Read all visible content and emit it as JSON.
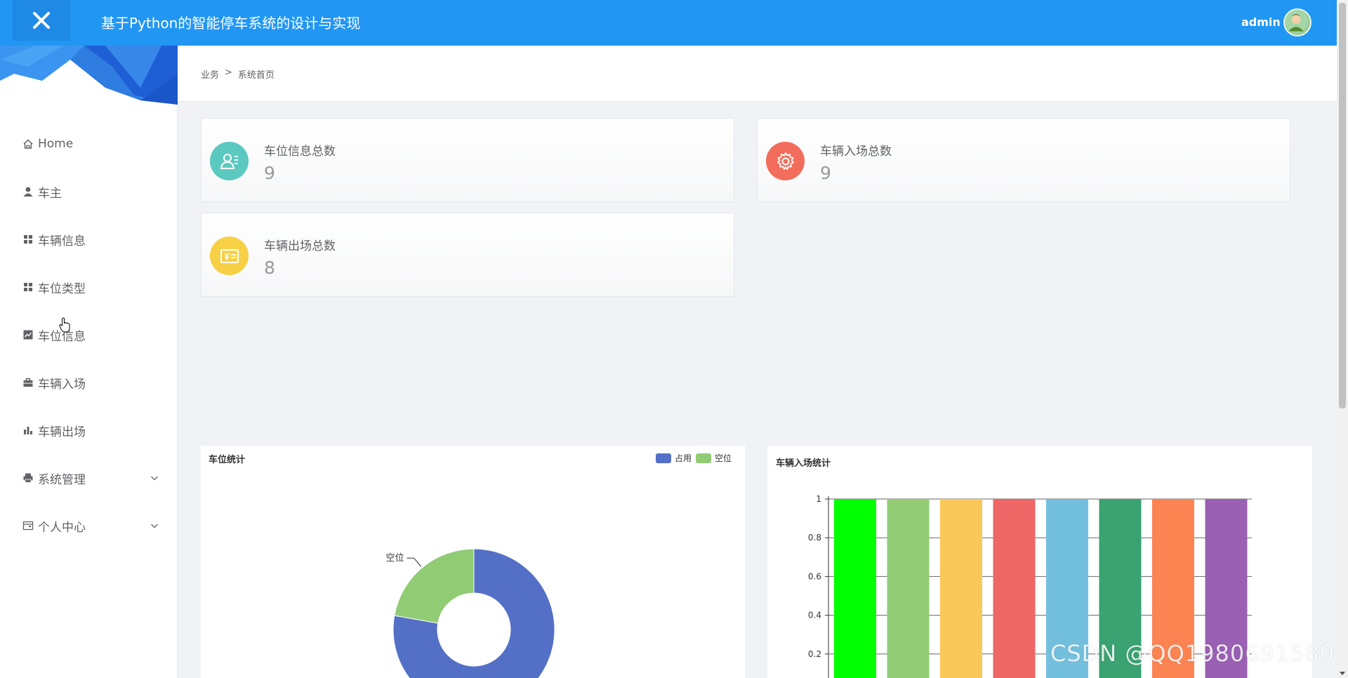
{
  "header": {
    "title": "基于Python的智能停车系统的设计与实现",
    "user": "admin"
  },
  "sidebar": {
    "items": [
      {
        "label": "Home",
        "icon": "home-icon"
      },
      {
        "label": "车主",
        "icon": "user-icon"
      },
      {
        "label": "车辆信息",
        "icon": "grid-icon"
      },
      {
        "label": "车位类型",
        "icon": "grid-icon"
      },
      {
        "label": "车位信息",
        "icon": "chart-line-icon"
      },
      {
        "label": "车辆入场",
        "icon": "briefcase-icon"
      },
      {
        "label": "车辆出场",
        "icon": "bar-chart-icon"
      },
      {
        "label": "系统管理",
        "icon": "printer-icon",
        "expandable": true
      },
      {
        "label": "个人中心",
        "icon": "wallet-icon",
        "expandable": true
      }
    ]
  },
  "breadcrumb": {
    "parent": "业务",
    "separator": ">",
    "current": "系统首页"
  },
  "stats": [
    {
      "label": "车位信息总数",
      "value": "9",
      "color": "#5cc9c0",
      "icon": "user-card-icon"
    },
    {
      "label": "车辆入场总数",
      "value": "9",
      "color": "#f26d5b",
      "icon": "gear-icon"
    },
    {
      "label": "车辆出场总数",
      "value": "8",
      "color": "#f7d046",
      "icon": "yuan-card-icon"
    }
  ],
  "panels": {
    "pie_title": "车位统计",
    "bar_title": "车辆入场统计"
  },
  "chart_data": [
    {
      "type": "pie",
      "title": "车位统计",
      "labels": [
        "占用",
        "空位"
      ],
      "values": [
        7,
        2
      ],
      "colors": [
        "#5470c6",
        "#91cc75"
      ],
      "legend": "top-right",
      "visible_slice_labels": [
        "空位"
      ]
    },
    {
      "type": "bar",
      "title": "车辆入场统计",
      "values": [
        1,
        1,
        1,
        1,
        1,
        1,
        1,
        1
      ],
      "colors": [
        "#00ff00",
        "#91cc75",
        "#fac858",
        "#ee6666",
        "#73c0de",
        "#3ba272",
        "#fc8452",
        "#9a60b4"
      ],
      "ylim": [
        0,
        1
      ],
      "y_ticks": [
        "1",
        "0.8",
        "0.6",
        "0.4",
        "0.2"
      ],
      "y_tick_values": [
        1,
        0.8,
        0.6,
        0.4,
        0.2
      ],
      "grid": true
    }
  ],
  "watermark": "CSDN @QQ1980691580"
}
